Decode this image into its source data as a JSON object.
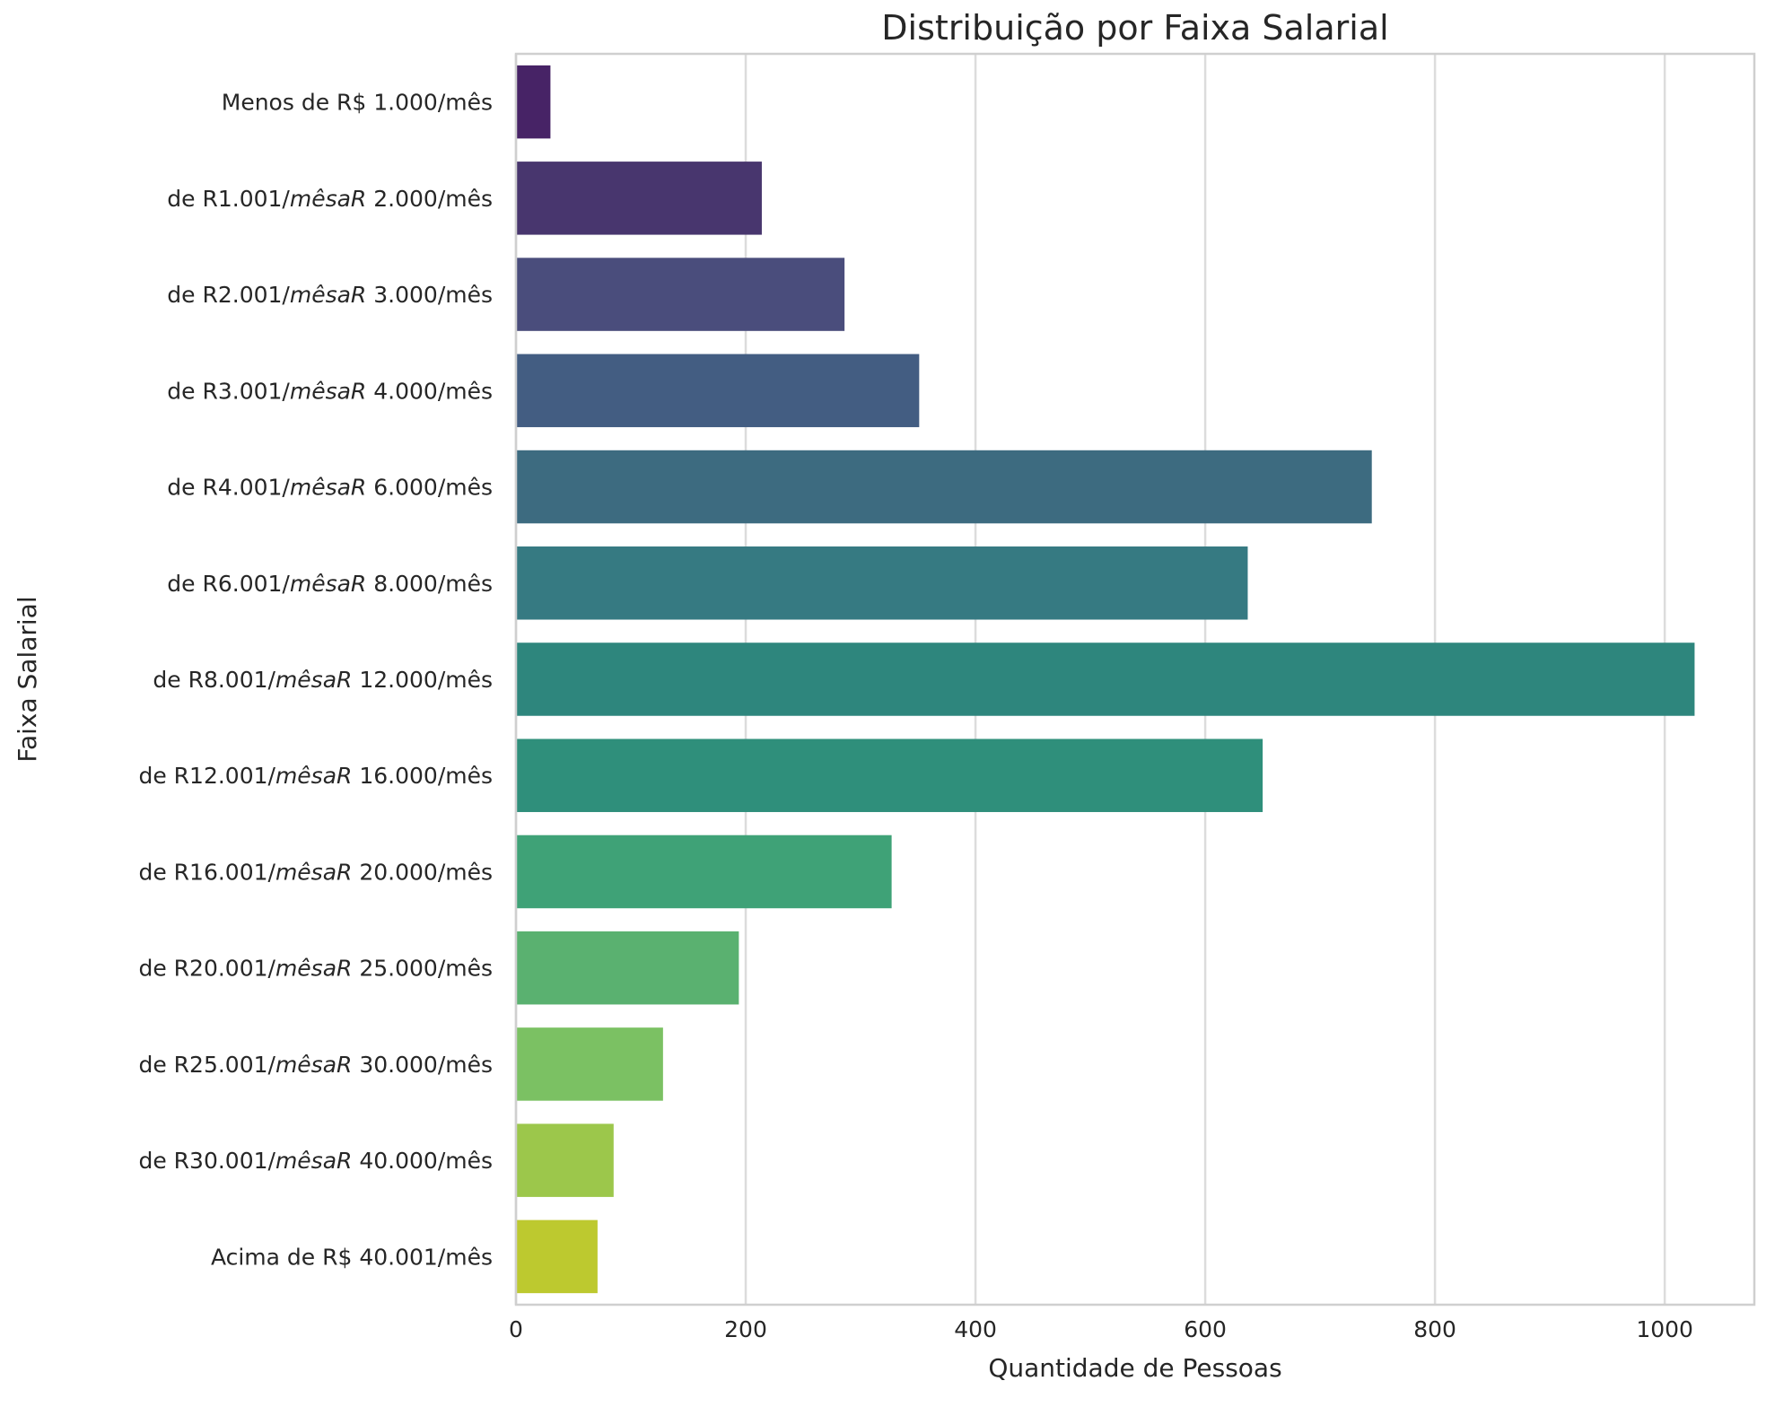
{
  "chart_data": {
    "type": "bar",
    "orientation": "horizontal",
    "title": "Distribuição por Faixa Salarial",
    "xlabel": "Quantidade de Pessoas",
    "ylabel": "Faixa Salarial",
    "xlim": [
      0,
      1078
    ],
    "xticks": [
      0,
      200,
      400,
      600,
      800,
      1000
    ],
    "grid": "vertical",
    "categories": [
      {
        "pre": "Menos de R$ 1.000/mês",
        "ital": "",
        "post": ""
      },
      {
        "pre": "de R1.001/",
        "ital": "mêsaR",
        "post": " 2.000/mês"
      },
      {
        "pre": "de R2.001/",
        "ital": "mêsaR",
        "post": " 3.000/mês"
      },
      {
        "pre": "de R3.001/",
        "ital": "mêsaR",
        "post": " 4.000/mês"
      },
      {
        "pre": "de R4.001/",
        "ital": "mêsaR",
        "post": " 6.000/mês"
      },
      {
        "pre": "de R6.001/",
        "ital": "mêsaR",
        "post": " 8.000/mês"
      },
      {
        "pre": "de R8.001/",
        "ital": "mêsaR",
        "post": " 12.000/mês"
      },
      {
        "pre": "de R12.001/",
        "ital": "mêsaR",
        "post": " 16.000/mês"
      },
      {
        "pre": "de R16.001/",
        "ital": "mêsaR",
        "post": " 20.000/mês"
      },
      {
        "pre": "de R20.001/",
        "ital": "mêsaR",
        "post": " 25.000/mês"
      },
      {
        "pre": "de R25.001/",
        "ital": "mêsaR",
        "post": " 30.000/mês"
      },
      {
        "pre": "de R30.001/",
        "ital": "mêsaR",
        "post": " 40.000/mês"
      },
      {
        "pre": "Acima de R$ 40.001/mês",
        "ital": "",
        "post": ""
      }
    ],
    "values": [
      30,
      214,
      286,
      351,
      745,
      637,
      1026,
      650,
      327,
      194,
      128,
      85,
      71
    ],
    "colors": [
      "#472366",
      "#48366e",
      "#4a4d7c",
      "#435d82",
      "#3d6b80",
      "#367a82",
      "#2e867d",
      "#2f8f7b",
      "#3fa277",
      "#5ab170",
      "#7bc163",
      "#9cc74b",
      "#bdc92f"
    ]
  }
}
